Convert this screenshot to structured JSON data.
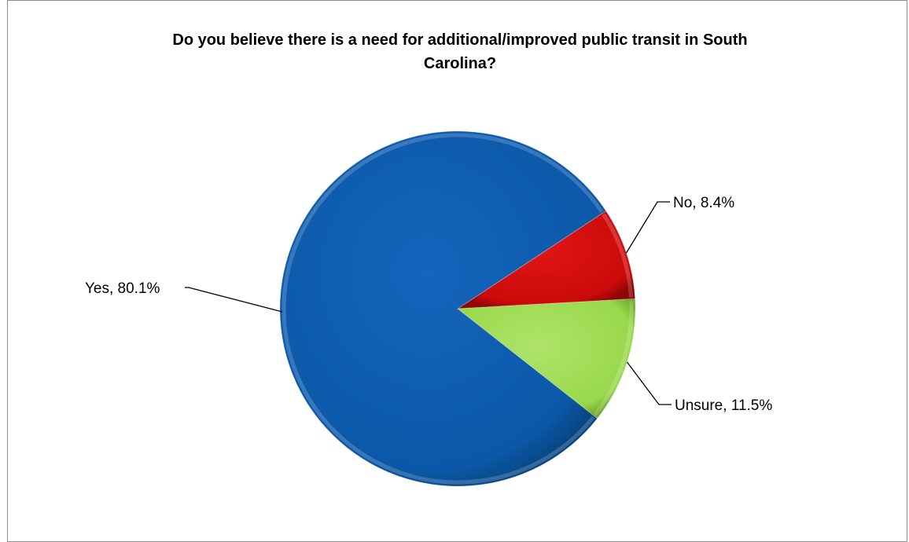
{
  "chart_data": {
    "type": "pie",
    "title": "Do you believe there is a need for additional/improved public transit in South Carolina?",
    "slices": [
      {
        "label": "Yes",
        "value": 80.1,
        "display": "Yes, 80.1%",
        "color": "#0f5aab"
      },
      {
        "label": "No",
        "value": 8.4,
        "display": "No, 8.4%",
        "color": "#d40c0c"
      },
      {
        "label": "Unsure",
        "value": 11.5,
        "display": "Unsure, 11.5%",
        "color": "#9cd94e"
      }
    ],
    "legend": "none"
  }
}
